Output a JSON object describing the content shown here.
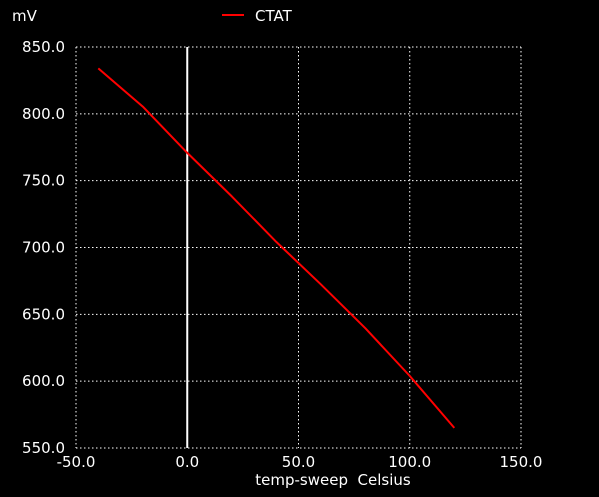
{
  "chart_data": {
    "type": "line",
    "xlabel": "temp-sweep  Celsius",
    "ylabel": "mV",
    "xlim": [
      -50,
      150
    ],
    "ylim": [
      550,
      850
    ],
    "xticks": [
      "-50.0",
      "0.0",
      "50.0",
      "100.0",
      "150.0"
    ],
    "yticks": [
      "550.0",
      "600.0",
      "650.0",
      "700.0",
      "750.0",
      "800.0",
      "850.0"
    ],
    "grid": true,
    "grid_style": "dotted",
    "legend_position": "top-center",
    "zero_line_x": 0,
    "background_color": "#000000",
    "foreground_color": "#ffffff",
    "series": [
      {
        "name": "CTAT",
        "color": "#ff0000",
        "x": [
          -40,
          -20,
          0,
          20,
          40,
          60,
          80,
          100,
          120
        ],
        "y": [
          834,
          805.4,
          770.8,
          738.2,
          704.2,
          672.5,
          639.6,
          603.9,
          565
        ]
      }
    ]
  }
}
